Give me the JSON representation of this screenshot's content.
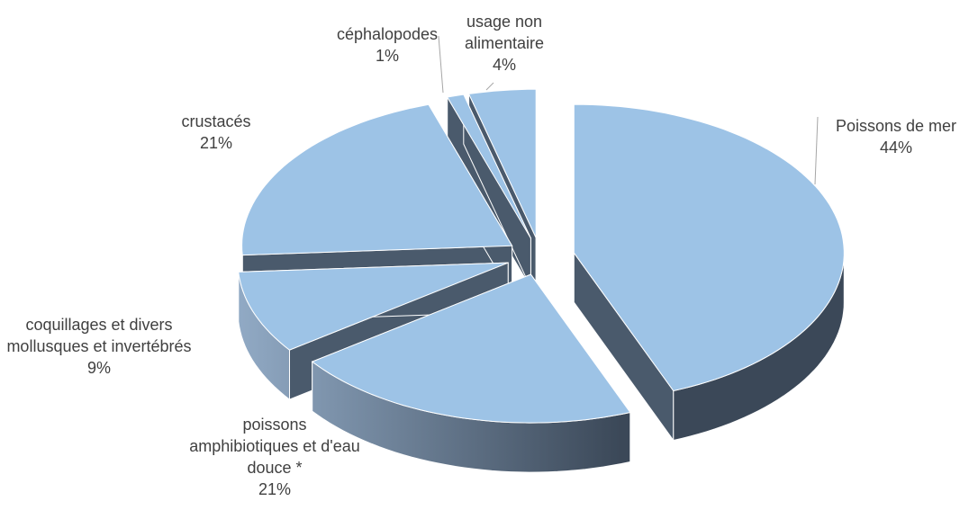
{
  "chart_data": {
    "type": "pie3d",
    "categories": [
      "Poissons de mer",
      "poissons amphibiotiques et d'eau douce *",
      "coquillages et divers mollusques et invertébrés",
      "crustacés",
      "céphalopodes",
      "usage non alimentaire"
    ],
    "values": [
      44,
      21,
      9,
      21,
      1,
      4
    ],
    "value_labels": [
      "44%",
      "21%",
      "9%",
      "21%",
      "1%",
      "4%"
    ],
    "color": "#9dc3e6"
  }
}
